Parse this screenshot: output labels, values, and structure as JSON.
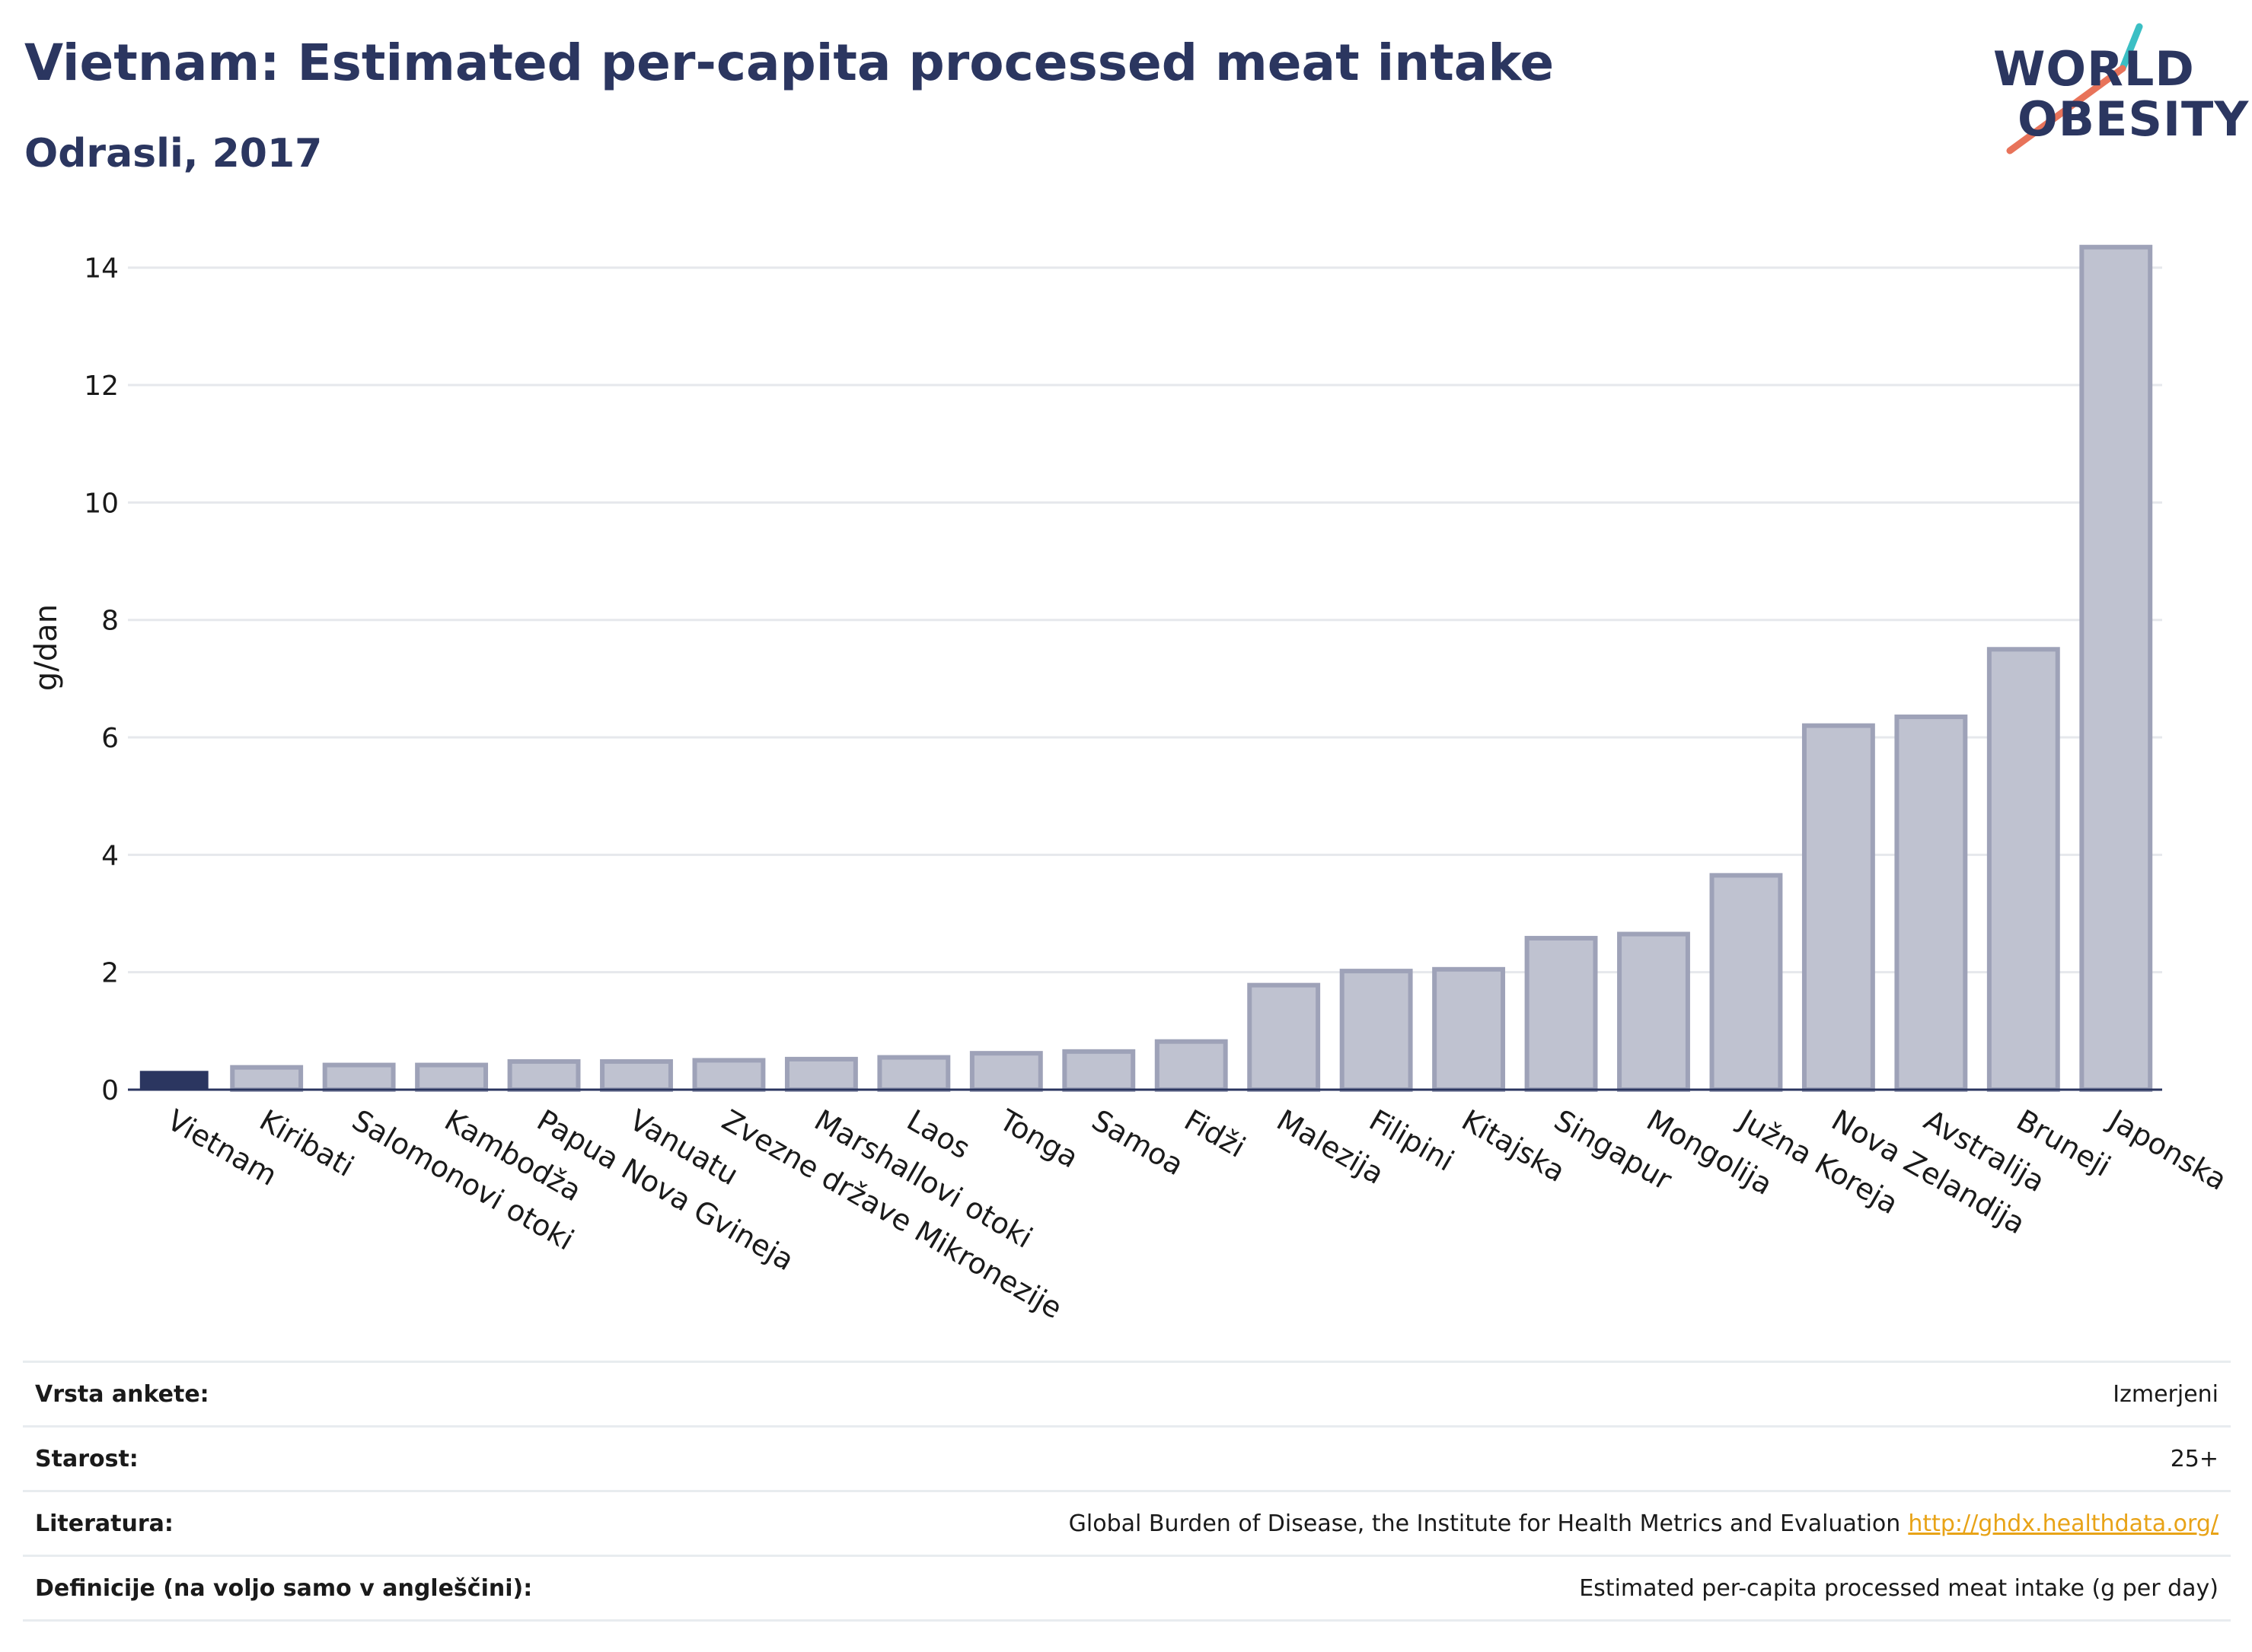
{
  "header": {
    "title": "Vietnam: Estimated per-capita processed meat intake",
    "subtitle": "Odrasli, 2017"
  },
  "logo": {
    "line1": "WORLD",
    "line2": "OBESITY",
    "colors": {
      "navy": "#2b3660",
      "teal": "#3bbfc4",
      "coral": "#e8735a"
    }
  },
  "chart_data": {
    "type": "bar",
    "title": "Vietnam: Estimated per-capita processed meat intake",
    "subtitle": "Odrasli, 2017",
    "ylabel": "g/dan",
    "ylim": [
      0,
      14.8
    ],
    "yticks": [
      0,
      2,
      4,
      6,
      8,
      10,
      12,
      14
    ],
    "grid": true,
    "categories": [
      "Vietnam",
      "Kiribati",
      "Salomonovi otoki",
      "Kambodža",
      "Papua Nova Gvineja",
      "Vanuatu",
      "Zvezne države Mikronezije",
      "Marshallovi otoki",
      "Laos",
      "Tonga",
      "Samoa",
      "Fidži",
      "Malezija",
      "Filipini",
      "Kitajska",
      "Singapur",
      "Mongolija",
      "Južna Koreja",
      "Nova Zelandija",
      "Avstralija",
      "Bruneji",
      "Japonska"
    ],
    "values": [
      0.32,
      0.38,
      0.42,
      0.42,
      0.48,
      0.48,
      0.5,
      0.52,
      0.55,
      0.62,
      0.65,
      0.82,
      1.78,
      2.02,
      2.05,
      2.58,
      2.65,
      3.65,
      6.2,
      6.35,
      7.5,
      14.35
    ],
    "highlight_index": 0,
    "colors": {
      "highlight": "#2b3660",
      "other": "#bfc2d0",
      "other_border": "#9ea2b8",
      "grid": "#e6e8ec",
      "axis": "#2b3660"
    }
  },
  "info_table": [
    {
      "key": "Vrsta ankete:",
      "value": "Izmerjeni"
    },
    {
      "key": "Starost:",
      "value": "25+"
    },
    {
      "key": "Literatura:",
      "value": "Global Burden of Disease, the Institute for Health Metrics and Evaluation",
      "link": "http://ghdx.healthdata.org/"
    },
    {
      "key": "Definicije (na voljo samo v angleščini):",
      "value": "Estimated per-capita processed meat intake (g per day)"
    }
  ]
}
